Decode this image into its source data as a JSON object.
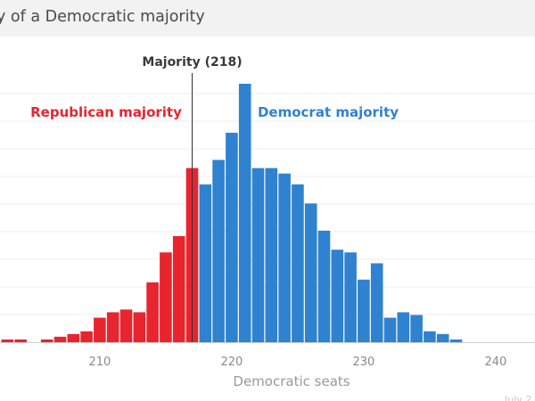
{
  "chart_data": {
    "type": "bar",
    "title": "y of a Democratic majority",
    "xlabel": "Democratic seats",
    "x_ticks": [
      210,
      220,
      230,
      240
    ],
    "xlim": [
      203,
      243
    ],
    "ylim": [
      0,
      95
    ],
    "grid": true,
    "majority_line": {
      "x": 217.5,
      "label": "Majority (218)"
    },
    "annotations": {
      "republican": "Republican majority",
      "democrat": "Democrat majority"
    },
    "credit": "July 2",
    "colors": {
      "republican": "#e8242e",
      "democrat": "#2f82cf"
    },
    "bins": [
      {
        "seats": 203,
        "value": 1
      },
      {
        "seats": 204,
        "value": 1
      },
      {
        "seats": 206,
        "value": 1
      },
      {
        "seats": 207,
        "value": 2
      },
      {
        "seats": 208,
        "value": 3
      },
      {
        "seats": 209,
        "value": 4
      },
      {
        "seats": 210,
        "value": 9
      },
      {
        "seats": 211,
        "value": 11
      },
      {
        "seats": 212,
        "value": 12
      },
      {
        "seats": 213,
        "value": 11
      },
      {
        "seats": 214,
        "value": 22
      },
      {
        "seats": 215,
        "value": 33
      },
      {
        "seats": 216,
        "value": 39
      },
      {
        "seats": 217,
        "value": 64
      },
      {
        "seats": 218,
        "value": 58
      },
      {
        "seats": 219,
        "value": 67
      },
      {
        "seats": 220,
        "value": 77
      },
      {
        "seats": 221,
        "value": 95
      },
      {
        "seats": 222,
        "value": 64
      },
      {
        "seats": 223,
        "value": 64
      },
      {
        "seats": 224,
        "value": 62
      },
      {
        "seats": 225,
        "value": 58
      },
      {
        "seats": 226,
        "value": 51
      },
      {
        "seats": 227,
        "value": 41
      },
      {
        "seats": 228,
        "value": 34
      },
      {
        "seats": 229,
        "value": 33
      },
      {
        "seats": 230,
        "value": 23
      },
      {
        "seats": 231,
        "value": 29
      },
      {
        "seats": 232,
        "value": 9
      },
      {
        "seats": 233,
        "value": 11
      },
      {
        "seats": 234,
        "value": 10
      },
      {
        "seats": 235,
        "value": 4
      },
      {
        "seats": 236,
        "value": 3
      },
      {
        "seats": 237,
        "value": 1
      }
    ]
  }
}
